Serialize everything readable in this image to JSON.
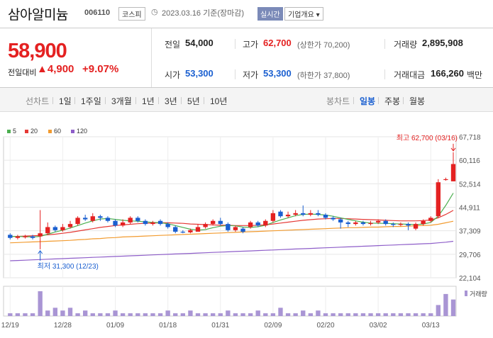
{
  "header": {
    "stock_name": "삼아알미늄",
    "stock_code": "006110",
    "market": "코스피",
    "date_text": "2023.03.16  기준(장마감)",
    "realtime_label": "실시간",
    "company_label": "기업개요 ▾"
  },
  "price": {
    "current": "58,900",
    "diff_label": "전일대비",
    "diff_value": "▲4,900",
    "diff_pct": "+9.07%"
  },
  "stats": {
    "prev_label": "전일",
    "prev_value": "54,000",
    "high_label": "고가",
    "high_value": "62,700",
    "upper_limit": "(상한가 70,200)",
    "volume_label": "거래량",
    "volume_value": "2,895,908",
    "open_label": "시가",
    "open_value": "53,300",
    "low_label": "저가",
    "low_value": "53,300",
    "lower_limit": "(하한가 37,800)",
    "amount_label": "거래대금",
    "amount_value": "166,260",
    "amount_unit": "백만"
  },
  "tabs": {
    "line_title": "선차트",
    "line_items": [
      "1일",
      "1주일",
      "3개월",
      "1년",
      "3년",
      "5년",
      "10년"
    ],
    "candle_title": "봉차트",
    "candle_items": [
      "일봉",
      "주봉",
      "월봉"
    ],
    "active_candle": "일봉"
  },
  "colors": {
    "up": "#e42121",
    "down": "#1a5fd0",
    "ma5": "#4caf50",
    "ma20": "#e53935",
    "ma60": "#f29b2f",
    "ma120": "#8e5ec9",
    "volume": "#a995d4"
  },
  "chart_data": {
    "type": "candlestick",
    "legend": [
      {
        "name": "5",
        "color": "#4caf50"
      },
      {
        "name": "20",
        "color": "#e53935"
      },
      {
        "name": "60",
        "color": "#f29b2f"
      },
      {
        "name": "120",
        "color": "#8e5ec9"
      }
    ],
    "y_ticks": [
      "67,718",
      "60,116",
      "52,514",
      "44,911",
      "37,309",
      "29,706",
      "22,104"
    ],
    "ylim": [
      22104,
      67718
    ],
    "x_ticks": [
      {
        "label": "12/19",
        "index": 0
      },
      {
        "label": "12/28",
        "index": 7
      },
      {
        "label": "01/09",
        "index": 14
      },
      {
        "label": "01/18",
        "index": 21
      },
      {
        "label": "01/31",
        "index": 28
      },
      {
        "label": "02/09",
        "index": 35
      },
      {
        "label": "02/20",
        "index": 42
      },
      {
        "label": "03/02",
        "index": 49
      },
      {
        "label": "03/13",
        "index": 56
      }
    ],
    "volume_label": "거래량",
    "high_annotation": "최고 62,700 (03/16)",
    "low_annotation": "최저 31,300 (12/23)",
    "high_index": 59,
    "high_value": 62700,
    "low_index": 4,
    "low_value": 31300,
    "candles": [
      {
        "o": 36000,
        "c": 35000,
        "h": 36500,
        "l": 34500
      },
      {
        "o": 35000,
        "c": 35500,
        "h": 36000,
        "l": 34500
      },
      {
        "o": 35200,
        "c": 35500,
        "h": 36000,
        "l": 34800
      },
      {
        "o": 35500,
        "c": 35000,
        "h": 36000,
        "l": 34500
      },
      {
        "o": 35500,
        "c": 36500,
        "h": 44000,
        "l": 31300
      },
      {
        "o": 36500,
        "c": 38500,
        "h": 40000,
        "l": 36000
      },
      {
        "o": 38500,
        "c": 37500,
        "h": 39000,
        "l": 37000
      },
      {
        "o": 37500,
        "c": 38500,
        "h": 39500,
        "l": 37000
      },
      {
        "o": 38500,
        "c": 39500,
        "h": 40500,
        "l": 38000
      },
      {
        "o": 39500,
        "c": 41500,
        "h": 42000,
        "l": 39000
      },
      {
        "o": 41500,
        "c": 41000,
        "h": 42500,
        "l": 40500
      },
      {
        "o": 40500,
        "c": 42000,
        "h": 43000,
        "l": 40000
      },
      {
        "o": 42000,
        "c": 41500,
        "h": 42500,
        "l": 40500
      },
      {
        "o": 41500,
        "c": 40500,
        "h": 42000,
        "l": 40000
      },
      {
        "o": 40500,
        "c": 39000,
        "h": 41000,
        "l": 38500
      },
      {
        "o": 39000,
        "c": 40000,
        "h": 41000,
        "l": 38500
      },
      {
        "o": 40000,
        "c": 41500,
        "h": 42000,
        "l": 39500
      },
      {
        "o": 41500,
        "c": 40500,
        "h": 42000,
        "l": 40000
      },
      {
        "o": 40500,
        "c": 39500,
        "h": 41000,
        "l": 39000
      },
      {
        "o": 39500,
        "c": 40000,
        "h": 40500,
        "l": 39000
      },
      {
        "o": 40500,
        "c": 39500,
        "h": 41000,
        "l": 39000
      },
      {
        "o": 39500,
        "c": 38500,
        "h": 40000,
        "l": 38000
      },
      {
        "o": 38500,
        "c": 37000,
        "h": 39000,
        "l": 36500
      },
      {
        "o": 37000,
        "c": 36800,
        "h": 37500,
        "l": 36500
      },
      {
        "o": 36800,
        "c": 37500,
        "h": 38000,
        "l": 36500
      },
      {
        "o": 37000,
        "c": 38500,
        "h": 39500,
        "l": 37000
      },
      {
        "o": 38500,
        "c": 39500,
        "h": 40000,
        "l": 38000
      },
      {
        "o": 39500,
        "c": 40500,
        "h": 41000,
        "l": 39000
      },
      {
        "o": 40500,
        "c": 39500,
        "h": 41500,
        "l": 39000
      },
      {
        "o": 39500,
        "c": 37500,
        "h": 40000,
        "l": 37000
      },
      {
        "o": 37500,
        "c": 38500,
        "h": 39000,
        "l": 37000
      },
      {
        "o": 38000,
        "c": 37000,
        "h": 38500,
        "l": 36500
      },
      {
        "o": 38500,
        "c": 40000,
        "h": 40500,
        "l": 38000
      },
      {
        "o": 40000,
        "c": 39000,
        "h": 40500,
        "l": 38500
      },
      {
        "o": 39000,
        "c": 40500,
        "h": 41000,
        "l": 38500
      },
      {
        "o": 40500,
        "c": 43000,
        "h": 44000,
        "l": 40000
      },
      {
        "o": 43500,
        "c": 42000,
        "h": 44000,
        "l": 41500
      },
      {
        "o": 42000,
        "c": 42500,
        "h": 43500,
        "l": 41500
      },
      {
        "o": 42500,
        "c": 43000,
        "h": 44000,
        "l": 42000
      },
      {
        "o": 43000,
        "c": 42500,
        "h": 45500,
        "l": 42000
      },
      {
        "o": 42500,
        "c": 43000,
        "h": 44000,
        "l": 42000
      },
      {
        "o": 43000,
        "c": 42500,
        "h": 44000,
        "l": 42000
      },
      {
        "o": 42500,
        "c": 41500,
        "h": 43000,
        "l": 41000
      },
      {
        "o": 41500,
        "c": 41000,
        "h": 42000,
        "l": 40500
      },
      {
        "o": 41000,
        "c": 40000,
        "h": 41500,
        "l": 38000
      },
      {
        "o": 40000,
        "c": 39500,
        "h": 40500,
        "l": 38500
      },
      {
        "o": 39500,
        "c": 40000,
        "h": 40500,
        "l": 39000
      },
      {
        "o": 40000,
        "c": 39500,
        "h": 40500,
        "l": 39000
      },
      {
        "o": 39500,
        "c": 39800,
        "h": 40500,
        "l": 39000
      },
      {
        "o": 40000,
        "c": 40500,
        "h": 41000,
        "l": 39500
      },
      {
        "o": 40500,
        "c": 39500,
        "h": 41000,
        "l": 39000
      },
      {
        "o": 39500,
        "c": 39200,
        "h": 40000,
        "l": 38500
      },
      {
        "o": 39200,
        "c": 39500,
        "h": 40000,
        "l": 38800
      },
      {
        "o": 39500,
        "c": 39000,
        "h": 40000,
        "l": 37500
      },
      {
        "o": 38000,
        "c": 39500,
        "h": 40000,
        "l": 37500
      },
      {
        "o": 39500,
        "c": 40500,
        "h": 41000,
        "l": 39000
      },
      {
        "o": 40500,
        "c": 41500,
        "h": 42000,
        "l": 40000
      },
      {
        "o": 42000,
        "c": 53000,
        "h": 54000,
        "l": 41500
      },
      {
        "o": 54000,
        "c": 54000,
        "h": 54500,
        "l": 53500
      },
      {
        "o": 53300,
        "c": 58900,
        "h": 62700,
        "l": 53300
      }
    ],
    "volumes": [
      1,
      1,
      1,
      1,
      9,
      2,
      3,
      2,
      3,
      1,
      2,
      1,
      1,
      1,
      2,
      1,
      1,
      1,
      1,
      1,
      1,
      2,
      1,
      1,
      2,
      1,
      1,
      1,
      1,
      2,
      1,
      1,
      1,
      2,
      1,
      1,
      3,
      1,
      1,
      2,
      1,
      2,
      1,
      1,
      1,
      1,
      1,
      1,
      1,
      1,
      1,
      1,
      1,
      1,
      1,
      1,
      1,
      4,
      8,
      6
    ],
    "ma5": [
      35500,
      35500,
      35400,
      35300,
      35500,
      36200,
      36900,
      37500,
      38200,
      39000,
      39800,
      40500,
      41100,
      41300,
      41000,
      40700,
      40500,
      40400,
      40200,
      40000,
      39900,
      39600,
      39000,
      38400,
      37800,
      37500,
      37700,
      38300,
      38800,
      39000,
      38900,
      38500,
      38400,
      38600,
      39100,
      40000,
      40800,
      41500,
      42200,
      42600,
      42700,
      42600,
      42400,
      42000,
      41500,
      41000,
      40500,
      40100,
      39800,
      39700,
      39700,
      39600,
      39500,
      39400,
      39300,
      39500,
      40000,
      42000,
      45500,
      49500
    ],
    "ma20": [
      35500,
      35500,
      35600,
      35700,
      35800,
      36000,
      36200,
      36500,
      36800,
      37200,
      37600,
      38000,
      38400,
      38700,
      39000,
      39200,
      39400,
      39600,
      39700,
      39800,
      39900,
      39900,
      39800,
      39700,
      39500,
      39400,
      39300,
      39200,
      39100,
      39100,
      39000,
      39000,
      39000,
      39100,
      39200,
      39500,
      39800,
      40100,
      40400,
      40700,
      40900,
      41100,
      41200,
      41300,
      41300,
      41200,
      41100,
      41000,
      40900,
      40800,
      40700,
      40600,
      40500,
      40500,
      40500,
      40600,
      40800,
      41500,
      42600,
      43900
    ],
    "ma60": [
      33400,
      33500,
      33600,
      33700,
      33800,
      33900,
      34000,
      34100,
      34200,
      34400,
      34500,
      34700,
      34800,
      35000,
      35100,
      35300,
      35400,
      35500,
      35600,
      35700,
      35800,
      35900,
      36000,
      36100,
      36200,
      36300,
      36400,
      36500,
      36600,
      36700,
      36800,
      36900,
      37000,
      37100,
      37200,
      37300,
      37400,
      37500,
      37600,
      37700,
      37800,
      37900,
      38000,
      38100,
      38200,
      38300,
      38300,
      38400,
      38500,
      38500,
      38600,
      38700,
      38700,
      38800,
      38900,
      39000,
      39100,
      39400,
      39900,
      40400
    ],
    "ma120": [
      27600,
      27700,
      27800,
      27900,
      28000,
      28100,
      28200,
      28300,
      28400,
      28500,
      28600,
      28700,
      28800,
      28900,
      29000,
      29100,
      29200,
      29300,
      29400,
      29500,
      29600,
      29700,
      29800,
      29900,
      30000,
      30100,
      30200,
      30300,
      30400,
      30500,
      30600,
      30700,
      30800,
      30900,
      31000,
      31100,
      31200,
      31300,
      31400,
      31500,
      31600,
      31700,
      31800,
      31900,
      32000,
      32100,
      32200,
      32300,
      32400,
      32500,
      32600,
      32700,
      32800,
      32900,
      33000,
      33100,
      33200,
      33400,
      33600,
      33900
    ]
  }
}
